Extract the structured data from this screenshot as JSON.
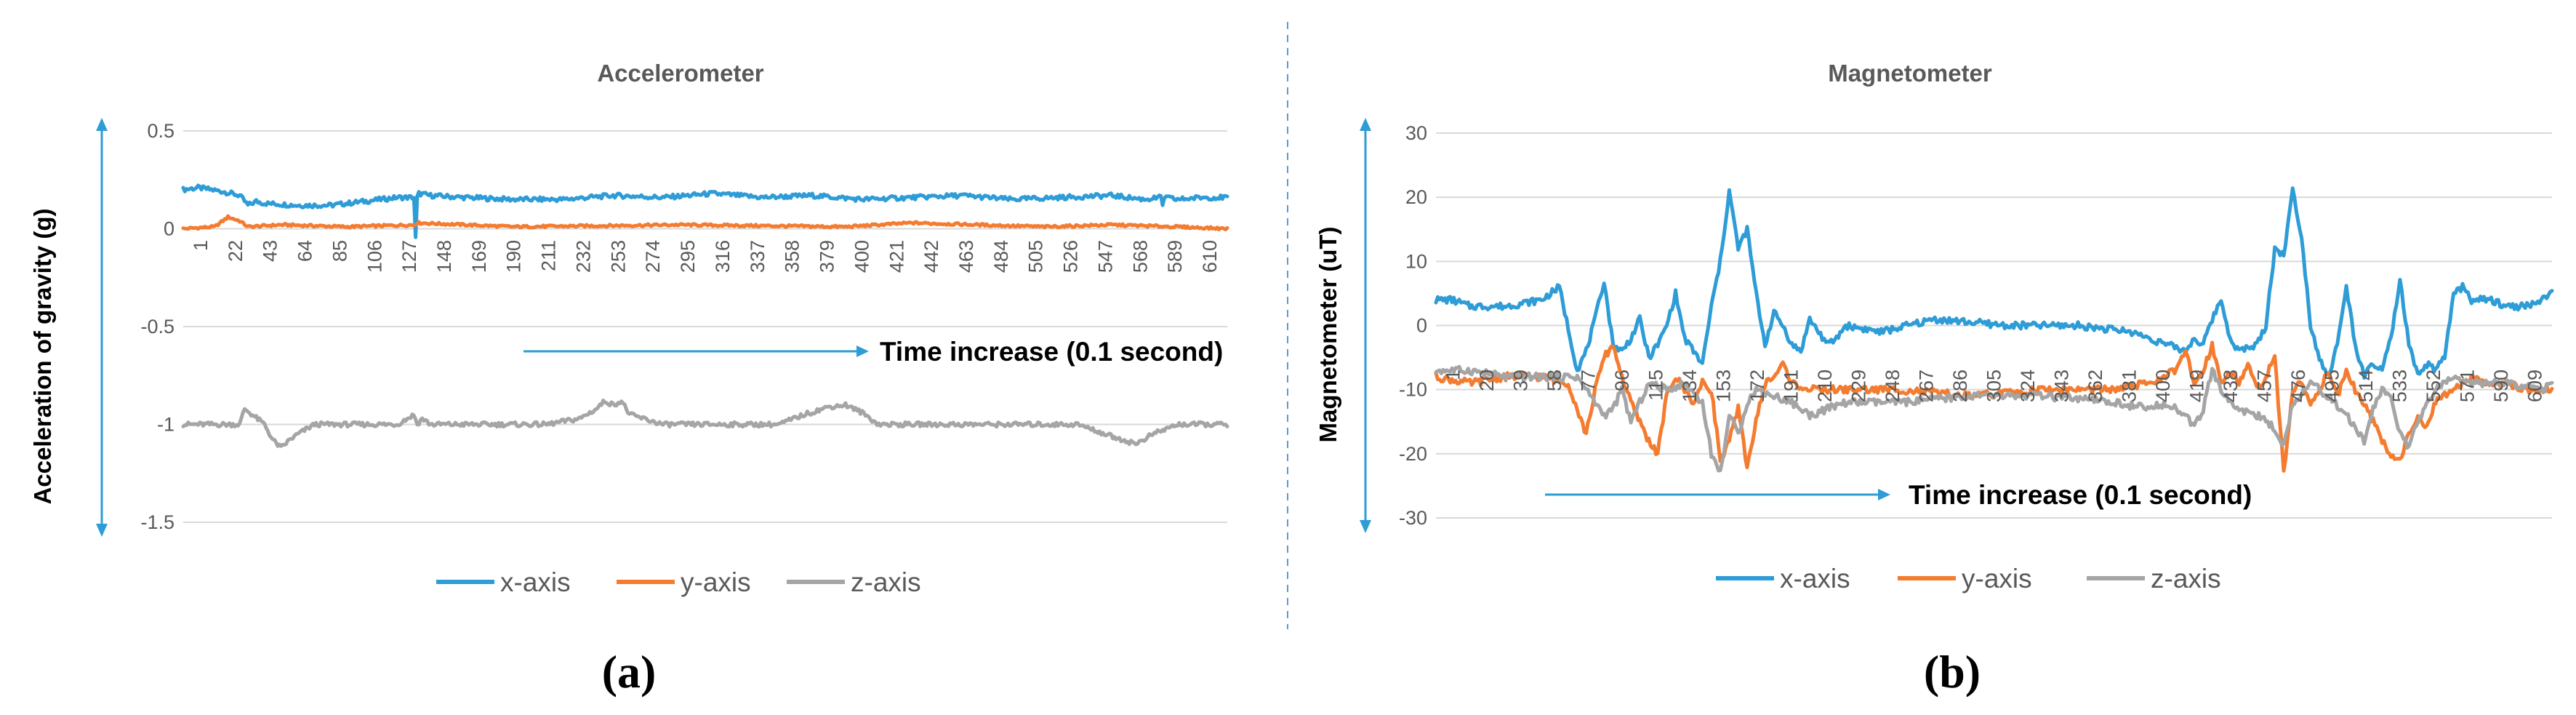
{
  "colors": {
    "x": "#2E9CD6",
    "y": "#F47C30",
    "z": "#A5A5A5",
    "arrow": "#2E9CD6",
    "grid": "#D9D9D9",
    "text": "#595959"
  },
  "legend_labels": [
    "x-axis",
    "y-axis",
    "z-axis"
  ],
  "panel_labels": [
    "(a)",
    "(b)"
  ],
  "chart_data": [
    {
      "type": "line",
      "title": "Accelerometer",
      "xlabel": "",
      "ylabel": "Acceleration of gravity (g)",
      "ylim": [
        -1.5,
        0.5
      ],
      "yticks": [
        "0.5",
        "0",
        "-0.5",
        "-1",
        "-1.5"
      ],
      "ytick_values": [
        0.5,
        0,
        -0.5,
        -1,
        -1.5
      ],
      "xticks": [
        "1",
        "22",
        "43",
        "64",
        "85",
        "106",
        "127",
        "148",
        "169",
        "190",
        "211",
        "232",
        "253",
        "274",
        "295",
        "316",
        "337",
        "358",
        "379",
        "400",
        "421",
        "442",
        "463",
        "484",
        "505",
        "526",
        "547",
        "568",
        "589",
        "610"
      ],
      "x_range": [
        1,
        630
      ],
      "annotation": "Time increase (0.1 second)",
      "grid": true,
      "legend": "bottom",
      "series": [
        {
          "name": "x-axis",
          "x": [
            1,
            10,
            25,
            35,
            40,
            45,
            50,
            70,
            90,
            110,
            130,
            140,
            141,
            142,
            143,
            150,
            170,
            200,
            230,
            260,
            290,
            320,
            350,
            380,
            410,
            440,
            470,
            500,
            530,
            560,
            580,
            590,
            591,
            592,
            600,
            615,
            630
          ],
          "values": [
            0.2,
            0.21,
            0.19,
            0.17,
            0.12,
            0.14,
            0.13,
            0.12,
            0.12,
            0.14,
            0.16,
            0.16,
            -0.05,
            0.16,
            0.18,
            0.17,
            0.16,
            0.15,
            0.15,
            0.17,
            0.16,
            0.18,
            0.16,
            0.17,
            0.15,
            0.16,
            0.17,
            0.15,
            0.16,
            0.17,
            0.15,
            0.16,
            0.12,
            0.16,
            0.15,
            0.16,
            0.16
          ]
        },
        {
          "name": "y-axis",
          "x": [
            1,
            20,
            28,
            35,
            40,
            60,
            100,
            140,
            142,
            200,
            300,
            400,
            440,
            480,
            520,
            560,
            600,
            630
          ],
          "values": [
            0,
            0.01,
            0.06,
            0.04,
            0.01,
            0.02,
            0.01,
            0.02,
            0.03,
            0.01,
            0.02,
            0.01,
            0.03,
            0.02,
            0.01,
            0.02,
            0.01,
            0.0
          ]
        },
        {
          "name": "z-axis",
          "x": [
            1,
            20,
            35,
            38,
            50,
            55,
            60,
            65,
            70,
            80,
            100,
            130,
            140,
            142,
            145,
            150,
            170,
            200,
            220,
            240,
            250,
            255,
            260,
            265,
            270,
            290,
            310,
            360,
            375,
            390,
            400,
            410,
            420,
            430,
            460,
            500,
            540,
            560,
            575,
            585,
            600,
            630
          ],
          "values": [
            -1,
            -1,
            -1,
            -0.92,
            -1,
            -1.08,
            -1.12,
            -1.08,
            -1.05,
            -1,
            -1,
            -1,
            -0.95,
            -1,
            -0.97,
            -1,
            -1,
            -1,
            -1,
            -0.97,
            -0.92,
            -0.88,
            -0.9,
            -0.88,
            -0.95,
            -1,
            -1,
            -1,
            -0.95,
            -0.91,
            -0.9,
            -0.94,
            -1,
            -1,
            -1,
            -1,
            -1,
            -1.06,
            -1.1,
            -1.05,
            -1,
            -1
          ]
        }
      ]
    },
    {
      "type": "line",
      "title": "Magnetometer",
      "xlabel": "",
      "ylabel": "Magnetometer (uT)",
      "ylim": [
        -30,
        30
      ],
      "yticks": [
        "30",
        "20",
        "10",
        "0",
        "-10",
        "-20",
        "-30"
      ],
      "ytick_values": [
        30,
        20,
        10,
        0,
        -10,
        -20,
        -30
      ],
      "xticks": [
        "1",
        "20",
        "39",
        "58",
        "77",
        "96",
        "115",
        "134",
        "153",
        "172",
        "191",
        "210",
        "229",
        "248",
        "267",
        "286",
        "305",
        "324",
        "343",
        "362",
        "381",
        "400",
        "419",
        "438",
        "457",
        "476",
        "495",
        "514",
        "533",
        "552",
        "571",
        "590",
        "609"
      ],
      "x_range": [
        1,
        625
      ],
      "annotation": "Time increase (0.1 second)",
      "grid": true,
      "legend": "bottom",
      "series": [
        {
          "name": "x-axis",
          "x": [
            1,
            10,
            20,
            40,
            60,
            70,
            80,
            85,
            90,
            95,
            100,
            105,
            110,
            115,
            120,
            125,
            130,
            135,
            140,
            150,
            155,
            160,
            165,
            170,
            175,
            180,
            185,
            190,
            195,
            200,
            205,
            210,
            215,
            220,
            225,
            230,
            250,
            280,
            320,
            360,
            390,
            410,
            420,
            425,
            430,
            435,
            440,
            445,
            450,
            460,
            465,
            470,
            475,
            480,
            485,
            490,
            495,
            500,
            505,
            510,
            515,
            520,
            525,
            530,
            535,
            540,
            545,
            550,
            555,
            560,
            565,
            570,
            575,
            580,
            590,
            600,
            610,
            620,
            625
          ],
          "values": [
            4,
            4,
            3,
            3,
            4,
            6,
            -7,
            -4,
            1,
            7,
            -3,
            -4,
            -2,
            1,
            -5,
            -3,
            0,
            5,
            -2,
            -6,
            3,
            10,
            21,
            12,
            15,
            5,
            -3,
            2,
            0,
            -3,
            -4,
            1,
            -1,
            -3,
            -2,
            0,
            -1,
            1,
            0,
            0,
            -1,
            -3,
            -4,
            -2,
            -3,
            1,
            4,
            -2,
            -4,
            -3,
            0,
            12,
            11,
            21,
            14,
            0,
            -5,
            -8,
            -3,
            6,
            -3,
            -8,
            -6,
            -7,
            -2,
            7,
            -3,
            -8,
            -6,
            -7,
            -5,
            5,
            6,
            4,
            4,
            3,
            3,
            4,
            5
          ]
        },
        {
          "name": "y-axis",
          "x": [
            1,
            20,
            40,
            60,
            75,
            85,
            90,
            95,
            100,
            105,
            110,
            115,
            120,
            125,
            130,
            135,
            140,
            145,
            150,
            155,
            160,
            165,
            170,
            175,
            180,
            185,
            190,
            195,
            200,
            210,
            230,
            260,
            300,
            340,
            380,
            400,
            415,
            420,
            425,
            430,
            435,
            440,
            445,
            450,
            455,
            460,
            465,
            470,
            475,
            480,
            485,
            490,
            495,
            500,
            505,
            510,
            515,
            520,
            525,
            530,
            535,
            540,
            545,
            550,
            555,
            560,
            570,
            580,
            590,
            600,
            610,
            625
          ],
          "values": [
            -8,
            -9,
            -8,
            -8,
            -9,
            -17,
            -10,
            -5,
            -3,
            -8,
            -12,
            -15,
            -18,
            -20,
            -11,
            -8,
            -10,
            -12,
            -9,
            -10,
            -21,
            -18,
            -13,
            -22,
            -15,
            -9,
            -8,
            -6,
            -9,
            -10,
            -10,
            -10,
            -11,
            -10,
            -10,
            -9,
            -7,
            -4,
            -9,
            -7,
            -3,
            -9,
            -7,
            -9,
            -6,
            -10,
            -8,
            -5,
            -23,
            -10,
            -9,
            -12,
            -10,
            -7,
            -11,
            -7,
            -10,
            -12,
            -15,
            -18,
            -20,
            -21,
            -17,
            -14,
            -16,
            -12,
            -10,
            -8,
            -9,
            -9,
            -10,
            -10
          ]
        },
        {
          "name": "z-axis",
          "x": [
            1,
            20,
            40,
            60,
            80,
            90,
            95,
            100,
            105,
            110,
            115,
            120,
            130,
            140,
            150,
            155,
            160,
            165,
            170,
            175,
            180,
            190,
            200,
            210,
            220,
            230,
            260,
            300,
            340,
            380,
            400,
            410,
            420,
            425,
            430,
            435,
            440,
            445,
            450,
            460,
            470,
            475,
            480,
            490,
            500,
            510,
            520,
            525,
            530,
            535,
            540,
            545,
            550,
            560,
            570,
            580,
            600,
            620,
            625
          ],
          "values": [
            -7,
            -7,
            -8,
            -8,
            -8,
            -12,
            -14,
            -13,
            -10,
            -15,
            -12,
            -9,
            -10,
            -9,
            -12,
            -20,
            -23,
            -14,
            -17,
            -12,
            -10,
            -11,
            -12,
            -14,
            -13,
            -12,
            -12,
            -11,
            -11,
            -12,
            -13,
            -12,
            -14,
            -16,
            -13,
            -7,
            -10,
            -12,
            -13,
            -14,
            -16,
            -19,
            -12,
            -9,
            -11,
            -14,
            -18,
            -13,
            -10,
            -11,
            -17,
            -19,
            -15,
            -10,
            -8,
            -9,
            -9,
            -10,
            -9
          ]
        }
      ]
    }
  ]
}
